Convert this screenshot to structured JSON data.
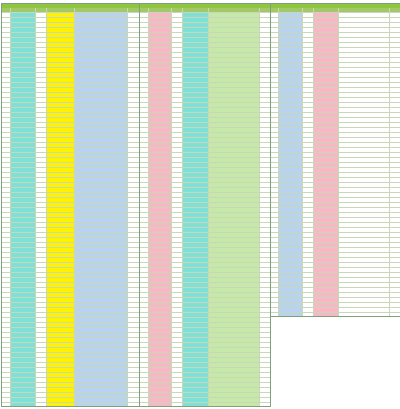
{
  "panels": [
    {
      "banner": "",
      "headers": [
        "",
        "",
        "",
        "",
        "",
        ""
      ]
    },
    {
      "banner": "",
      "headers": [
        "",
        "",
        "",
        "",
        "",
        ""
      ]
    },
    {
      "banner": "",
      "headers": [
        "",
        "",
        "",
        "",
        "",
        ""
      ]
    }
  ],
  "colors": {
    "banner": "#8fc53f",
    "header": "#a2c86a",
    "highlight_orange": "#f5a623",
    "highlight_yellow": "#fff200",
    "highlight_cyan": "#7fe0d8",
    "highlight_pink": "#f7b7c5"
  }
}
